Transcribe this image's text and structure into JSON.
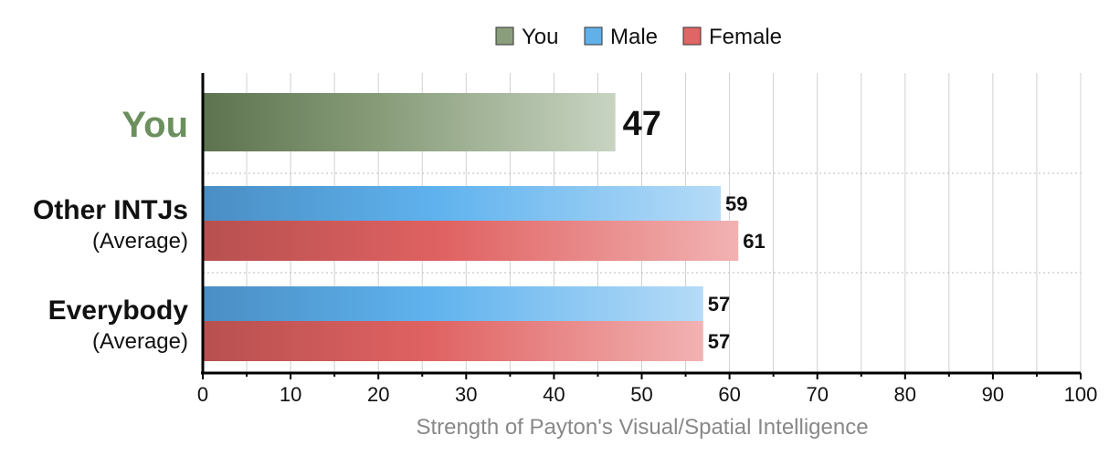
{
  "chart_data": {
    "type": "bar",
    "orientation": "horizontal",
    "xlabel": "Strength of Payton's Visual/Spatial Intelligence",
    "xlim": [
      0,
      100
    ],
    "xticks": [
      0,
      10,
      20,
      30,
      40,
      50,
      60,
      70,
      80,
      90,
      100
    ],
    "legend": [
      {
        "name": "You",
        "color": "#8a9e7c"
      },
      {
        "name": "Male",
        "color": "#62b0e8"
      },
      {
        "name": "Female",
        "color": "#e06666"
      }
    ],
    "legend_position": "top",
    "grid": true,
    "colors": {
      "you": "#6b8f5e",
      "male": "#5aaee8",
      "female": "#e05c5c"
    },
    "categories": [
      {
        "label": "You",
        "sublabel": "",
        "bars": [
          {
            "series": "You",
            "value": 47
          }
        ]
      },
      {
        "label": "Other INTJs",
        "sublabel": "(Average)",
        "bars": [
          {
            "series": "Male",
            "value": 59
          },
          {
            "series": "Female",
            "value": 61
          }
        ]
      },
      {
        "label": "Everybody",
        "sublabel": "(Average)",
        "bars": [
          {
            "series": "Male",
            "value": 57
          },
          {
            "series": "Female",
            "value": 57
          }
        ]
      }
    ]
  }
}
